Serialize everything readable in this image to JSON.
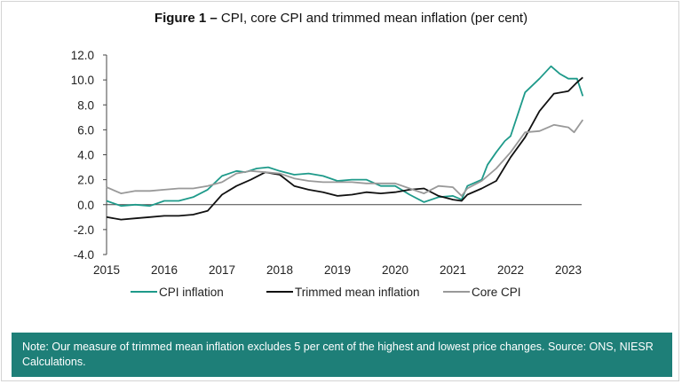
{
  "title_bold": "Figure 1 –",
  "title_rest": " CPI, core CPI and trimmed mean inflation (per cent)",
  "note": "Note: Our measure of trimmed mean inflation excludes 5 per cent of the highest and lowest price changes. Source: ONS, NIESR Calculations.",
  "chart_data": {
    "type": "line",
    "title": "Figure 1 – CPI, core CPI and trimmed mean inflation (per cent)",
    "xlabel": "",
    "ylabel": "",
    "ylim": [
      -4.0,
      12.0
    ],
    "xlim": [
      2015.0,
      2023.25
    ],
    "yticks": [
      "12.0",
      "10.0",
      "8.0",
      "6.0",
      "4.0",
      "2.0",
      "0.0",
      "-2.0",
      "-4.0"
    ],
    "xticks": [
      "2015",
      "2016",
      "2017",
      "2018",
      "2019",
      "2020",
      "2021",
      "2022",
      "2023"
    ],
    "grid": false,
    "legend": "bottom",
    "series": [
      {
        "name": "CPI inflation",
        "color": "#1e9a8a",
        "points": [
          [
            2015.0,
            0.3
          ],
          [
            2015.25,
            -0.1
          ],
          [
            2015.5,
            0.0
          ],
          [
            2015.75,
            -0.1
          ],
          [
            2016.0,
            0.3
          ],
          [
            2016.25,
            0.3
          ],
          [
            2016.5,
            0.6
          ],
          [
            2016.75,
            1.2
          ],
          [
            2017.0,
            2.3
          ],
          [
            2017.25,
            2.7
          ],
          [
            2017.4,
            2.6
          ],
          [
            2017.6,
            2.9
          ],
          [
            2017.8,
            3.0
          ],
          [
            2018.0,
            2.7
          ],
          [
            2018.25,
            2.4
          ],
          [
            2018.5,
            2.5
          ],
          [
            2018.75,
            2.3
          ],
          [
            2019.0,
            1.9
          ],
          [
            2019.25,
            2.0
          ],
          [
            2019.5,
            2.0
          ],
          [
            2019.75,
            1.5
          ],
          [
            2020.0,
            1.5
          ],
          [
            2020.25,
            0.8
          ],
          [
            2020.5,
            0.2
          ],
          [
            2020.75,
            0.6
          ],
          [
            2021.0,
            0.7
          ],
          [
            2021.15,
            0.4
          ],
          [
            2021.25,
            1.5
          ],
          [
            2021.5,
            2.0
          ],
          [
            2021.6,
            3.2
          ],
          [
            2021.75,
            4.2
          ],
          [
            2021.9,
            5.1
          ],
          [
            2022.0,
            5.5
          ],
          [
            2022.25,
            9.0
          ],
          [
            2022.5,
            10.1
          ],
          [
            2022.7,
            11.1
          ],
          [
            2022.85,
            10.5
          ],
          [
            2023.0,
            10.1
          ],
          [
            2023.15,
            10.1
          ],
          [
            2023.25,
            8.7
          ]
        ]
      },
      {
        "name": "Trimmed mean inflation",
        "color": "#111111",
        "points": [
          [
            2015.0,
            -1.0
          ],
          [
            2015.25,
            -1.2
          ],
          [
            2015.5,
            -1.1
          ],
          [
            2015.75,
            -1.0
          ],
          [
            2016.0,
            -0.9
          ],
          [
            2016.25,
            -0.9
          ],
          [
            2016.5,
            -0.8
          ],
          [
            2016.75,
            -0.5
          ],
          [
            2017.0,
            0.8
          ],
          [
            2017.25,
            1.5
          ],
          [
            2017.5,
            2.0
          ],
          [
            2017.75,
            2.6
          ],
          [
            2018.0,
            2.4
          ],
          [
            2018.25,
            1.5
          ],
          [
            2018.5,
            1.2
          ],
          [
            2018.75,
            1.0
          ],
          [
            2019.0,
            0.7
          ],
          [
            2019.25,
            0.8
          ],
          [
            2019.5,
            1.0
          ],
          [
            2019.75,
            0.9
          ],
          [
            2020.0,
            1.0
          ],
          [
            2020.25,
            1.2
          ],
          [
            2020.5,
            1.3
          ],
          [
            2020.75,
            0.7
          ],
          [
            2021.0,
            0.4
          ],
          [
            2021.15,
            0.3
          ],
          [
            2021.25,
            0.8
          ],
          [
            2021.5,
            1.3
          ],
          [
            2021.75,
            1.9
          ],
          [
            2022.0,
            3.8
          ],
          [
            2022.25,
            5.4
          ],
          [
            2022.5,
            7.5
          ],
          [
            2022.75,
            8.9
          ],
          [
            2023.0,
            9.1
          ],
          [
            2023.15,
            9.8
          ],
          [
            2023.25,
            10.2
          ]
        ]
      },
      {
        "name": "Core CPI",
        "color": "#999999",
        "points": [
          [
            2015.0,
            1.4
          ],
          [
            2015.25,
            0.9
          ],
          [
            2015.5,
            1.1
          ],
          [
            2015.75,
            1.1
          ],
          [
            2016.0,
            1.2
          ],
          [
            2016.25,
            1.3
          ],
          [
            2016.5,
            1.3
          ],
          [
            2016.75,
            1.5
          ],
          [
            2017.0,
            1.8
          ],
          [
            2017.25,
            2.5
          ],
          [
            2017.5,
            2.7
          ],
          [
            2017.75,
            2.6
          ],
          [
            2018.0,
            2.5
          ],
          [
            2018.25,
            2.1
          ],
          [
            2018.5,
            1.9
          ],
          [
            2018.75,
            1.8
          ],
          [
            2019.0,
            1.8
          ],
          [
            2019.25,
            1.8
          ],
          [
            2019.5,
            1.7
          ],
          [
            2019.75,
            1.7
          ],
          [
            2020.0,
            1.7
          ],
          [
            2020.25,
            1.3
          ],
          [
            2020.5,
            0.9
          ],
          [
            2020.75,
            1.5
          ],
          [
            2021.0,
            1.4
          ],
          [
            2021.15,
            0.7
          ],
          [
            2021.25,
            1.3
          ],
          [
            2021.5,
            1.9
          ],
          [
            2021.75,
            2.9
          ],
          [
            2022.0,
            4.2
          ],
          [
            2022.25,
            5.8
          ],
          [
            2022.5,
            5.9
          ],
          [
            2022.75,
            6.4
          ],
          [
            2023.0,
            6.2
          ],
          [
            2023.1,
            5.8
          ],
          [
            2023.25,
            6.8
          ]
        ]
      }
    ]
  }
}
